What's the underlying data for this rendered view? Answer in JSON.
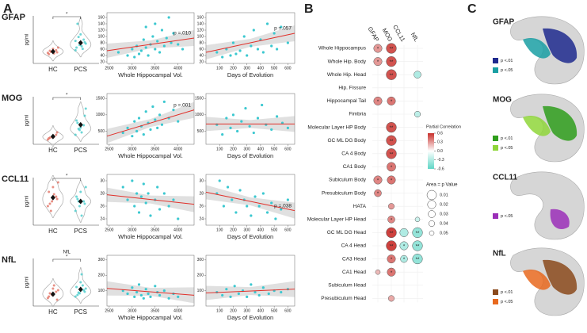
{
  "panel_labels": [
    "A",
    "B",
    "C"
  ],
  "chart_data": [
    {
      "type": "violin",
      "title": "GFAP",
      "y_label": "pg/ml",
      "ylim": [
        0,
        180
      ],
      "annotations": [
        "*"
      ],
      "groups": [
        {
          "name": "HC",
          "color": "#e06b5c",
          "values": [
            40,
            45,
            50,
            35,
            55,
            42,
            48,
            38,
            60,
            44
          ]
        },
        {
          "name": "PCS",
          "color": "#3cc8c8",
          "values": [
            50,
            70,
            90,
            60,
            110,
            80,
            150,
            65,
            75,
            100,
            55,
            85
          ]
        }
      ],
      "means": [
        45,
        78
      ]
    },
    {
      "type": "scatter",
      "x_label": "Whole Hippocampal Vol.",
      "color": "#3cc8d0",
      "fit_color": "#e0302a",
      "xlim": [
        2450,
        4350
      ],
      "xticks": [
        2500,
        3000,
        3500,
        4000
      ],
      "ylim": [
        15,
        175
      ],
      "yticks": [
        20,
        40,
        60,
        80,
        100,
        120,
        140,
        160
      ],
      "x": [
        2700,
        2900,
        3000,
        3050,
        3100,
        3150,
        3200,
        3250,
        3300,
        3350,
        3400,
        3450,
        3500,
        3550,
        3600,
        3650,
        3700,
        3750,
        3800,
        3850,
        3900,
        4000,
        4100,
        3300,
        3500
      ],
      "y": [
        50,
        40,
        60,
        35,
        70,
        45,
        55,
        90,
        65,
        40,
        75,
        100,
        60,
        85,
        50,
        120,
        70,
        95,
        160,
        80,
        110,
        75,
        60,
        130,
        140
      ],
      "fit": [
        55,
        95
      ],
      "annotation": "p =.010"
    },
    {
      "type": "scatter",
      "x_label": "Days of Evolution",
      "color": "#3cc8d0",
      "fit_color": "#e0302a",
      "xlim": [
        0,
        650
      ],
      "xticks": [
        100,
        200,
        300,
        400,
        500,
        600
      ],
      "ylim": [
        15,
        175
      ],
      "yticks": [
        20,
        40,
        60,
        80,
        100,
        120,
        140,
        160
      ],
      "x": [
        80,
        120,
        150,
        180,
        200,
        220,
        250,
        280,
        300,
        330,
        350,
        380,
        400,
        420,
        450,
        480,
        500,
        520,
        550,
        600
      ],
      "y": [
        50,
        35,
        60,
        40,
        80,
        45,
        55,
        100,
        40,
        70,
        120,
        60,
        90,
        50,
        140,
        70,
        110,
        60,
        130,
        80
      ],
      "fit": [
        50,
        110
      ],
      "annotation": "p =.057"
    },
    {
      "type": "violin",
      "title": "MOG",
      "y_label": "pg/ml",
      "ylim": [
        0,
        2000
      ],
      "annotations": [
        "*"
      ],
      "groups": [
        {
          "name": "HC",
          "color": "#e06b5c",
          "values": [
            200,
            300,
            400,
            250,
            350,
            500,
            280,
            320
          ]
        },
        {
          "name": "PCS",
          "color": "#3cc8c8",
          "values": [
            400,
            600,
            800,
            1000,
            700,
            1200,
            900,
            500,
            1500,
            650
          ]
        }
      ],
      "means": [
        330,
        820
      ]
    },
    {
      "type": "scatter",
      "x_label": "Whole Hippocampal Vol.",
      "color": "#3cc8d0",
      "fit_color": "#e0302a",
      "xlim": [
        2450,
        4350
      ],
      "xticks": [
        2500,
        3000,
        3500,
        4000
      ],
      "ylim": [
        100,
        1650
      ],
      "yticks": [
        500,
        1000,
        1500
      ],
      "x": [
        2800,
        2900,
        3000,
        3050,
        3100,
        3150,
        3200,
        3250,
        3300,
        3350,
        3400,
        3450,
        3500,
        3550,
        3600,
        3650,
        3700,
        3800,
        3900,
        4000
      ],
      "y": [
        450,
        600,
        350,
        800,
        500,
        900,
        650,
        400,
        1100,
        750,
        550,
        1250,
        850,
        600,
        1000,
        700,
        1400,
        900,
        1150,
        800
      ],
      "fit": [
        350,
        1150
      ],
      "annotation": "p =.001"
    },
    {
      "type": "scatter",
      "x_label": "Days of Evolution",
      "color": "#3cc8d0",
      "fit_color": "#e0302a",
      "xlim": [
        0,
        650
      ],
      "xticks": [
        100,
        200,
        300,
        400,
        500,
        600
      ],
      "ylim": [
        100,
        1650
      ],
      "yticks": [
        500,
        1000,
        1500
      ],
      "x": [
        80,
        120,
        150,
        180,
        200,
        230,
        260,
        290,
        320,
        350,
        380,
        410,
        440,
        480,
        520,
        560,
        600
      ],
      "y": [
        700,
        400,
        900,
        600,
        1000,
        500,
        800,
        1200,
        650,
        450,
        900,
        1300,
        700,
        550,
        950,
        750,
        600
      ],
      "fit": [
        720,
        720
      ]
    },
    {
      "type": "violin",
      "title": "CCL11",
      "y_label": "pg/ml",
      "ylim": [
        22,
        32
      ],
      "annotations": [
        "*"
      ],
      "groups": [
        {
          "name": "HC",
          "color": "#e06b5c",
          "values": [
            26,
            27,
            28,
            29,
            30,
            27.5,
            26.5,
            28.5,
            31,
            25
          ]
        },
        {
          "name": "PCS",
          "color": "#3cc8c8",
          "values": [
            25,
            26,
            27,
            28,
            29,
            26.5,
            27.5,
            24,
            30,
            27
          ]
        }
      ],
      "means": [
        27.8,
        27
      ]
    },
    {
      "type": "scatter",
      "x_label": "Whole Hippocampal Vol.",
      "color": "#3cc8d0",
      "fit_color": "#e0302a",
      "xlim": [
        2450,
        4350
      ],
      "xticks": [
        2500,
        3000,
        3500,
        4000
      ],
      "ylim": [
        23,
        31
      ],
      "yticks": [
        24,
        26,
        28,
        30
      ],
      "x": [
        2800,
        2900,
        3000,
        3050,
        3100,
        3150,
        3200,
        3250,
        3300,
        3350,
        3400,
        3500,
        3550,
        3600,
        3700,
        3800,
        3900,
        4000
      ],
      "y": [
        29,
        27,
        30,
        26,
        28,
        25,
        27.5,
        29.5,
        26.5,
        28,
        24.5,
        27,
        29,
        25.5,
        28,
        26,
        27,
        24
      ],
      "fit": [
        27.8,
        26.3
      ]
    },
    {
      "type": "scatter",
      "x_label": "Days of Evolution",
      "color": "#3cc8d0",
      "fit_color": "#e0302a",
      "xlim": [
        0,
        650
      ],
      "xticks": [
        100,
        200,
        300,
        400,
        500,
        600
      ],
      "ylim": [
        23,
        31
      ],
      "yticks": [
        24,
        26,
        28,
        30
      ],
      "x": [
        80,
        100,
        130,
        160,
        190,
        220,
        250,
        280,
        300,
        330,
        360,
        390,
        420,
        450,
        480,
        510,
        550,
        600
      ],
      "y": [
        28,
        30,
        26,
        29,
        27,
        25,
        28.5,
        27,
        26,
        24.5,
        27.5,
        26,
        28,
        25,
        26.5,
        24,
        25.5,
        27
      ],
      "fit": [
        28.2,
        25.3
      ],
      "annotation": "p =.038"
    },
    {
      "type": "violin",
      "title": "NfL",
      "y_label": "pg/ml",
      "ylim": [
        0,
        300
      ],
      "annotations": [
        "NfL",
        "*"
      ],
      "groups": [
        {
          "name": "HC",
          "color": "#e06b5c",
          "values": [
            50,
            70,
            90,
            60,
            110,
            40,
            80,
            130,
            100
          ]
        },
        {
          "name": "PCS",
          "color": "#3cc8c8",
          "values": [
            60,
            80,
            100,
            120,
            150,
            90,
            70,
            200,
            110,
            85,
            130
          ]
        }
      ],
      "means": [
        75,
        105
      ]
    },
    {
      "type": "scatter",
      "x_label": "Whole Hippocampal Vol.",
      "color": "#3cc8d0",
      "fit_color": "#e0302a",
      "xlim": [
        2450,
        4350
      ],
      "xticks": [
        2500,
        3000,
        3500,
        4000
      ],
      "ylim": [
        0,
        330
      ],
      "yticks": [
        100,
        200,
        300
      ],
      "x": [
        2800,
        2900,
        3000,
        3050,
        3100,
        3150,
        3200,
        3250,
        3300,
        3350,
        3400,
        3500,
        3550,
        3600,
        3700,
        3800,
        3900,
        4000
      ],
      "y": [
        100,
        80,
        120,
        60,
        90,
        140,
        70,
        50,
        110,
        80,
        60,
        130,
        90,
        70,
        100,
        50,
        80,
        60
      ],
      "fit": [
        115,
        70
      ]
    },
    {
      "type": "scatter",
      "x_label": "Days of Evolution",
      "color": "#3cc8d0",
      "fit_color": "#e0302a",
      "xlim": [
        0,
        650
      ],
      "xticks": [
        100,
        200,
        300,
        400,
        500,
        600
      ],
      "ylim": [
        0,
        330
      ],
      "yticks": [
        100,
        200,
        300
      ],
      "x": [
        80,
        120,
        150,
        180,
        210,
        240,
        270,
        300,
        330,
        360,
        390,
        420,
        460,
        500,
        550,
        600
      ],
      "y": [
        90,
        70,
        110,
        60,
        130,
        80,
        100,
        60,
        140,
        90,
        70,
        120,
        80,
        100,
        90,
        110
      ],
      "fit": [
        85,
        110
      ]
    },
    {
      "type": "dotmatrix",
      "columns": [
        "GFAP",
        "MOG",
        "CCL11",
        "NfL"
      ],
      "rows": [
        "Whole Hippocampus",
        "Whole Hip. Body",
        "Whole Hip. Head",
        "Hip. Fissure",
        "Hippocampal Tail",
        "Fimbria",
        "Molecular Layer HP Body",
        "GC ML DG Body",
        "CA 4 Body",
        "CA1 Body",
        "Subiculum Body",
        "Presubiculum Body",
        "HATA",
        "Molecular Layer HP Head",
        "GC ML DG Head",
        "CA 4 Head",
        "CA3 Head",
        "CA1 Head",
        "Subiculum Head",
        "Presubiculum Head"
      ],
      "cells": [
        {
          "row": 0,
          "col": 0,
          "r": 0.3,
          "p": 0.02,
          "label": "*"
        },
        {
          "row": 0,
          "col": 1,
          "r": 0.5,
          "p": 0.005,
          "label": "**"
        },
        {
          "row": 1,
          "col": 0,
          "r": 0.3,
          "p": 0.02,
          "label": "*"
        },
        {
          "row": 1,
          "col": 1,
          "r": 0.5,
          "p": 0.005,
          "label": "**"
        },
        {
          "row": 2,
          "col": 1,
          "r": 0.5,
          "p": 0.004,
          "label": "**"
        },
        {
          "row": 2,
          "col": 3,
          "r": -0.3,
          "p": 0.03
        },
        {
          "row": 4,
          "col": 0,
          "r": 0.35,
          "p": 0.02,
          "label": "*"
        },
        {
          "row": 4,
          "col": 1,
          "r": 0.4,
          "p": 0.02,
          "label": "*"
        },
        {
          "row": 5,
          "col": 3,
          "r": -0.25,
          "p": 0.04
        },
        {
          "row": 6,
          "col": 1,
          "r": 0.5,
          "p": 0.005,
          "label": "**"
        },
        {
          "row": 7,
          "col": 1,
          "r": 0.5,
          "p": 0.005,
          "label": "**"
        },
        {
          "row": 8,
          "col": 1,
          "r": 0.5,
          "p": 0.004,
          "label": "**"
        },
        {
          "row": 9,
          "col": 1,
          "r": 0.4,
          "p": 0.015,
          "label": "*"
        },
        {
          "row": 10,
          "col": 0,
          "r": 0.35,
          "p": 0.02,
          "label": "*"
        },
        {
          "row": 10,
          "col": 1,
          "r": 0.4,
          "p": 0.02,
          "label": "*"
        },
        {
          "row": 11,
          "col": 0,
          "r": 0.35,
          "p": 0.03,
          "label": "*"
        },
        {
          "row": 12,
          "col": 1,
          "r": 0.3,
          "p": 0.04
        },
        {
          "row": 13,
          "col": 1,
          "r": 0.35,
          "p": 0.03,
          "label": "*"
        },
        {
          "row": 13,
          "col": 3,
          "r": -0.2,
          "p": 0.05
        },
        {
          "row": 14,
          "col": 1,
          "r": 0.55,
          "p": 0.004,
          "label": "**"
        },
        {
          "row": 14,
          "col": 2,
          "r": -0.3,
          "p": 0.02
        },
        {
          "row": 14,
          "col": 3,
          "r": -0.4,
          "p": 0.005,
          "label": "**"
        },
        {
          "row": 15,
          "col": 1,
          "r": 0.55,
          "p": 0.004,
          "label": "**"
        },
        {
          "row": 15,
          "col": 2,
          "r": -0.3,
          "p": 0.02,
          "label": "*"
        },
        {
          "row": 15,
          "col": 3,
          "r": -0.4,
          "p": 0.005,
          "label": "**"
        },
        {
          "row": 16,
          "col": 1,
          "r": 0.4,
          "p": 0.02,
          "label": "*"
        },
        {
          "row": 16,
          "col": 2,
          "r": -0.3,
          "p": 0.03,
          "label": "*"
        },
        {
          "row": 16,
          "col": 3,
          "r": -0.4,
          "p": 0.006,
          "label": "**"
        },
        {
          "row": 17,
          "col": 0,
          "r": 0.2,
          "p": 0.05
        },
        {
          "row": 17,
          "col": 1,
          "r": 0.4,
          "p": 0.02,
          "label": "*"
        },
        {
          "row": 19,
          "col": 1,
          "r": 0.25,
          "p": 0.04
        }
      ],
      "color_title": "Partial Correlation",
      "colors": {
        "low": "#5fd6c6",
        "mid": "#ffffff",
        "high": "#c9302c"
      },
      "clim": [
        -0.6,
        0.6
      ],
      "cticks": [
        0.6,
        0.3,
        {
          "value": 0,
          "label": "0.0"
        },
        -0.3,
        -0.6
      ],
      "size_title": "Area = p Value",
      "size_values": [
        0.01,
        0.02,
        0.03,
        0.04,
        0.05
      ]
    }
  ],
  "panel_c": [
    {
      "title": "GFAP",
      "legend": [
        {
          "label": "p <.01",
          "color": "#1f2a8e"
        },
        {
          "label": "p <.05",
          "color": "#1a9fa3"
        }
      ]
    },
    {
      "title": "MOG",
      "legend": [
        {
          "label": "p <.01",
          "color": "#2f9e1c"
        },
        {
          "label": "p <.05",
          "color": "#8fd63a"
        }
      ]
    },
    {
      "title": "CCL11",
      "legend": [
        {
          "label": "p <.05",
          "color": "#9b2fb8"
        }
      ]
    },
    {
      "title": "NfL",
      "legend": [
        {
          "label": "p <.01",
          "color": "#8b4a1c"
        },
        {
          "label": "p <.05",
          "color": "#e8691e"
        }
      ]
    }
  ]
}
